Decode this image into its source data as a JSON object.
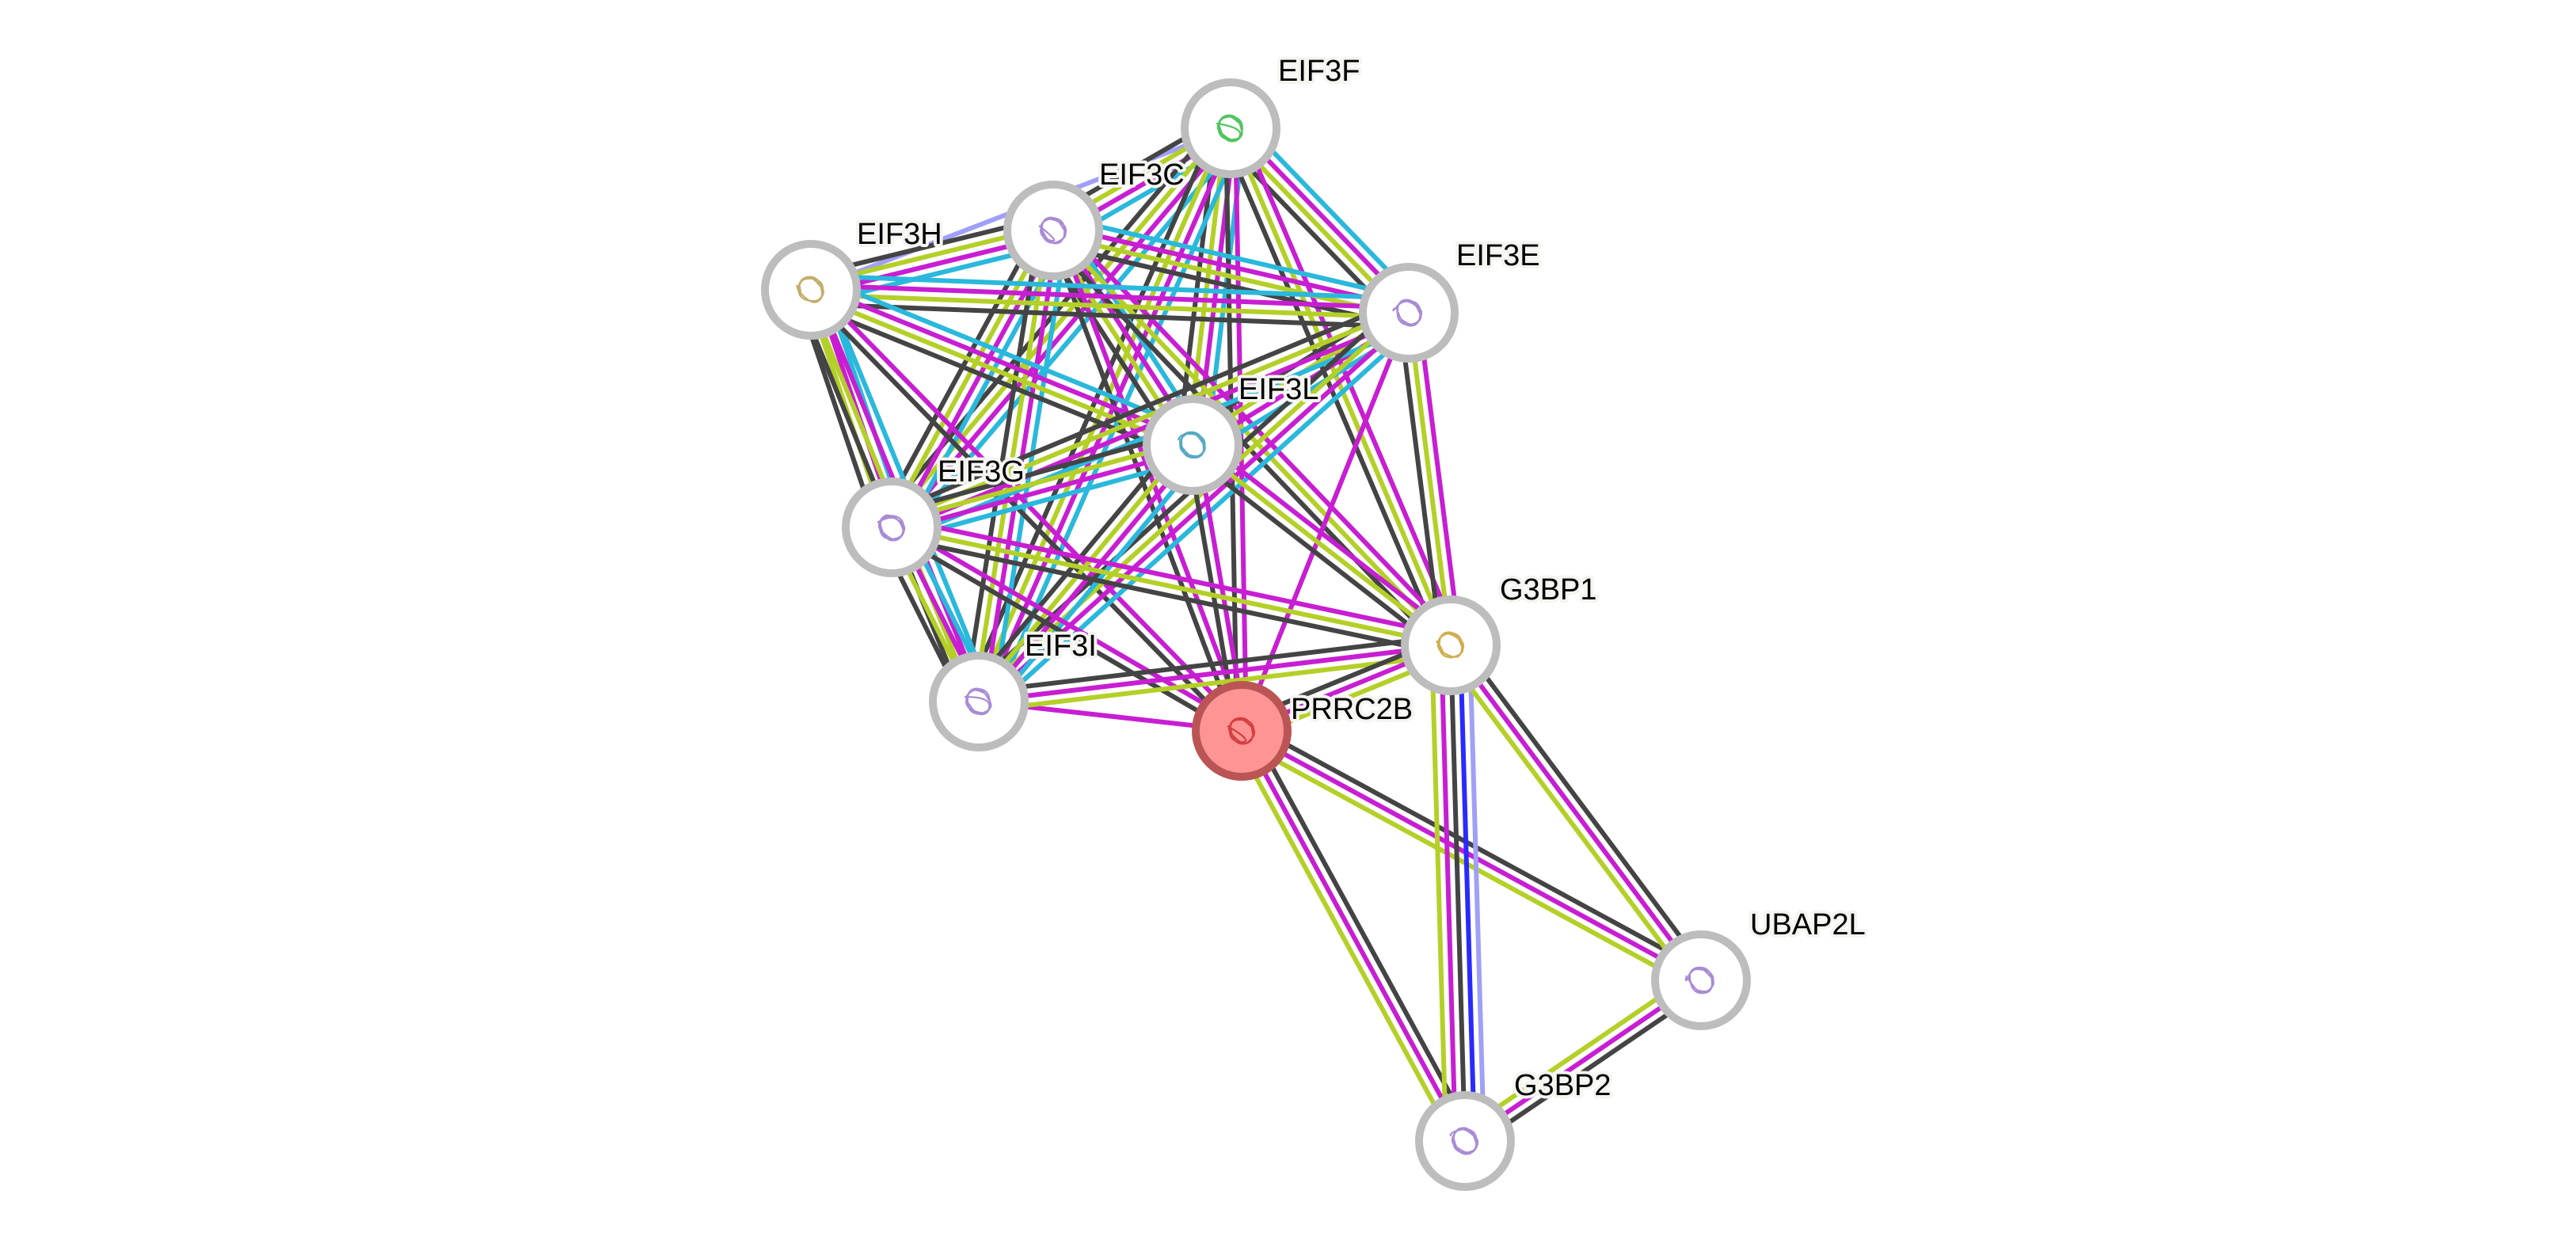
{
  "evidence_colors": {
    "database": "#2ab8dc",
    "experiments": "#c81ed2",
    "textmining": "#b4d028",
    "coexpression": "#444444",
    "cooccurrence": "#2a2aff",
    "homology": "#a0a0f8"
  },
  "query_node_color": "#ff9494",
  "query_node_border": "#bb5555",
  "node_border": "#bdbdbd",
  "nodes": [
    {
      "id": "EIF3F",
      "label": "EIF3F",
      "structure_color": "#33bb44"
    },
    {
      "id": "EIF3C",
      "label": "EIF3C",
      "structure_color": "#9a77cc"
    },
    {
      "id": "EIF3H",
      "label": "EIF3H",
      "structure_color": "#b8a050"
    },
    {
      "id": "EIF3E",
      "label": "EIF3E",
      "structure_color": "#9a77cc"
    },
    {
      "id": "EIF3L",
      "label": "EIF3L",
      "structure_color": "#3a9ab8"
    },
    {
      "id": "EIF3G",
      "label": "EIF3G",
      "structure_color": "#9a77cc"
    },
    {
      "id": "EIF3I",
      "label": "EIF3I",
      "structure_color": "#9a77cc"
    },
    {
      "id": "PRRC2B",
      "label": "PRRC2B",
      "structure_color": "#cc3333",
      "query": true
    },
    {
      "id": "G3BP1",
      "label": "G3BP1",
      "structure_color": "#c8a030"
    },
    {
      "id": "UBAP2L",
      "label": "UBAP2L",
      "structure_color": "#9a77cc"
    },
    {
      "id": "G3BP2",
      "label": "G3BP2",
      "structure_color": "#9a77cc"
    }
  ],
  "edges": [
    {
      "a": "EIF3F",
      "b": "EIF3H",
      "ev": [
        "homology"
      ]
    },
    {
      "a": "EIF3F",
      "b": "EIF3C",
      "ev": [
        "database",
        "experiments",
        "textmining",
        "coexpression"
      ]
    },
    {
      "a": "EIF3F",
      "b": "EIF3E",
      "ev": [
        "database",
        "experiments",
        "textmining",
        "coexpression"
      ]
    },
    {
      "a": "EIF3F",
      "b": "EIF3L",
      "ev": [
        "database",
        "experiments",
        "textmining",
        "coexpression"
      ]
    },
    {
      "a": "EIF3F",
      "b": "EIF3G",
      "ev": [
        "database",
        "experiments",
        "textmining",
        "coexpression"
      ]
    },
    {
      "a": "EIF3F",
      "b": "EIF3I",
      "ev": [
        "database",
        "experiments",
        "textmining",
        "coexpression"
      ]
    },
    {
      "a": "EIF3F",
      "b": "PRRC2B",
      "ev": [
        "experiments",
        "coexpression"
      ]
    },
    {
      "a": "EIF3F",
      "b": "G3BP1",
      "ev": [
        "experiments",
        "textmining",
        "coexpression"
      ]
    },
    {
      "a": "EIF3C",
      "b": "EIF3H",
      "ev": [
        "database",
        "experiments",
        "textmining",
        "coexpression"
      ]
    },
    {
      "a": "EIF3C",
      "b": "EIF3E",
      "ev": [
        "database",
        "experiments",
        "textmining",
        "coexpression"
      ]
    },
    {
      "a": "EIF3C",
      "b": "EIF3L",
      "ev": [
        "database",
        "experiments",
        "textmining",
        "coexpression"
      ]
    },
    {
      "a": "EIF3C",
      "b": "EIF3G",
      "ev": [
        "database",
        "experiments",
        "textmining",
        "coexpression"
      ]
    },
    {
      "a": "EIF3C",
      "b": "EIF3I",
      "ev": [
        "database",
        "experiments",
        "textmining",
        "coexpression"
      ]
    },
    {
      "a": "EIF3C",
      "b": "PRRC2B",
      "ev": [
        "experiments",
        "coexpression"
      ]
    },
    {
      "a": "EIF3C",
      "b": "G3BP1",
      "ev": [
        "experiments",
        "textmining",
        "coexpression"
      ]
    },
    {
      "a": "EIF3H",
      "b": "EIF3E",
      "ev": [
        "database",
        "experiments",
        "textmining",
        "coexpression"
      ]
    },
    {
      "a": "EIF3H",
      "b": "EIF3L",
      "ev": [
        "database",
        "experiments",
        "textmining",
        "coexpression"
      ]
    },
    {
      "a": "EIF3H",
      "b": "EIF3G",
      "ev": [
        "database",
        "experiments",
        "textmining",
        "coexpression"
      ]
    },
    {
      "a": "EIF3H",
      "b": "EIF3I",
      "ev": [
        "database",
        "experiments",
        "textmining",
        "coexpression"
      ]
    },
    {
      "a": "EIF3H",
      "b": "PRRC2B",
      "ev": [
        "experiments",
        "coexpression"
      ]
    },
    {
      "a": "EIF3E",
      "b": "EIF3L",
      "ev": [
        "database",
        "experiments",
        "textmining",
        "coexpression"
      ]
    },
    {
      "a": "EIF3E",
      "b": "EIF3G",
      "ev": [
        "database",
        "experiments",
        "textmining",
        "coexpression"
      ]
    },
    {
      "a": "EIF3E",
      "b": "EIF3I",
      "ev": [
        "database",
        "experiments",
        "textmining",
        "coexpression"
      ]
    },
    {
      "a": "EIF3E",
      "b": "PRRC2B",
      "ev": [
        "experiments"
      ]
    },
    {
      "a": "EIF3E",
      "b": "G3BP1",
      "ev": [
        "experiments",
        "textmining",
        "coexpression"
      ]
    },
    {
      "a": "EIF3L",
      "b": "EIF3G",
      "ev": [
        "database",
        "experiments",
        "textmining",
        "coexpression"
      ]
    },
    {
      "a": "EIF3L",
      "b": "EIF3I",
      "ev": [
        "database",
        "experiments",
        "textmining",
        "coexpression"
      ]
    },
    {
      "a": "EIF3L",
      "b": "PRRC2B",
      "ev": [
        "experiments",
        "coexpression"
      ]
    },
    {
      "a": "EIF3L",
      "b": "G3BP1",
      "ev": [
        "experiments",
        "textmining",
        "coexpression"
      ]
    },
    {
      "a": "EIF3G",
      "b": "EIF3I",
      "ev": [
        "database",
        "experiments",
        "textmining",
        "coexpression"
      ]
    },
    {
      "a": "EIF3G",
      "b": "PRRC2B",
      "ev": [
        "experiments",
        "coexpression"
      ]
    },
    {
      "a": "EIF3G",
      "b": "G3BP1",
      "ev": [
        "experiments",
        "textmining",
        "coexpression"
      ]
    },
    {
      "a": "EIF3I",
      "b": "PRRC2B",
      "ev": [
        "experiments"
      ]
    },
    {
      "a": "EIF3I",
      "b": "G3BP1",
      "ev": [
        "coexpression",
        "experiments",
        "textmining"
      ]
    },
    {
      "a": "PRRC2B",
      "b": "G3BP1",
      "ev": [
        "coexpression",
        "experiments",
        "textmining"
      ]
    },
    {
      "a": "PRRC2B",
      "b": "UBAP2L",
      "ev": [
        "coexpression",
        "experiments",
        "textmining"
      ]
    },
    {
      "a": "PRRC2B",
      "b": "G3BP2",
      "ev": [
        "coexpression",
        "experiments",
        "textmining"
      ]
    },
    {
      "a": "G3BP1",
      "b": "G3BP2",
      "ev": [
        "homology",
        "cooccurrence",
        "coexpression",
        "experiments",
        "textmining"
      ]
    },
    {
      "a": "G3BP1",
      "b": "UBAP2L",
      "ev": [
        "coexpression",
        "experiments",
        "textmining"
      ]
    },
    {
      "a": "UBAP2L",
      "b": "G3BP2",
      "ev": [
        "coexpression",
        "experiments",
        "textmining"
      ]
    }
  ]
}
